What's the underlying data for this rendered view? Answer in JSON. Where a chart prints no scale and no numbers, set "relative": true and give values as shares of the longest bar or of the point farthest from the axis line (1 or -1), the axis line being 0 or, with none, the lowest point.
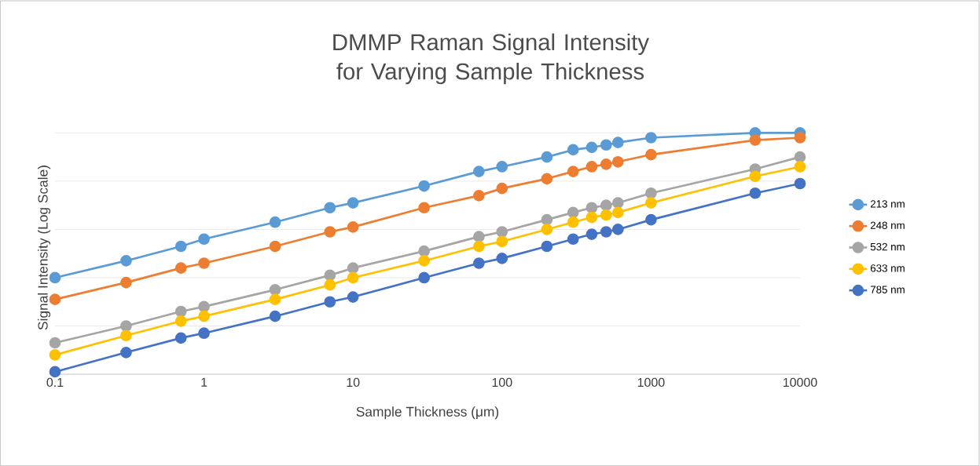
{
  "chart_data": {
    "type": "line",
    "title": "DMMP Raman Signal Intensity for Varying Sample Thickness",
    "xlabel": "Sample Thickness (μm)",
    "ylabel": "Signal Intensity (Log Scale)",
    "relative": true,
    "log": "x",
    "grid": "y",
    "legend": "right",
    "marker": "circle",
    "x": [
      0.1,
      0.3,
      0.7,
      1,
      3,
      7,
      10,
      30,
      70,
      100,
      200,
      300,
      400,
      500,
      600,
      1000,
      5000,
      10000
    ],
    "xlim": [
      0.1,
      10000
    ],
    "xticks": [
      0.1,
      1,
      10,
      100,
      1000,
      10000
    ],
    "series": [
      {
        "name": "213 nm",
        "color": "#5b9bd5",
        "values": [
          0.4,
          0.47,
          0.53,
          0.56,
          0.63,
          0.69,
          0.71,
          0.78,
          0.84,
          0.86,
          0.9,
          0.93,
          0.94,
          0.95,
          0.96,
          0.98,
          1,
          1
        ]
      },
      {
        "name": "248 nm",
        "color": "#ed7d31",
        "values": [
          0.31,
          0.38,
          0.44,
          0.46,
          0.53,
          0.59,
          0.61,
          0.69,
          0.74,
          0.77,
          0.81,
          0.84,
          0.86,
          0.87,
          0.88,
          0.91,
          0.97,
          0.98
        ]
      },
      {
        "name": "532 nm",
        "color": "#a5a5a5",
        "values": [
          0.13,
          0.2,
          0.26,
          0.28,
          0.35,
          0.41,
          0.44,
          0.51,
          0.57,
          0.59,
          0.64,
          0.67,
          0.69,
          0.7,
          0.71,
          0.75,
          0.85,
          0.9
        ]
      },
      {
        "name": "633 nm",
        "color": "#ffc000",
        "values": [
          0.08,
          0.16,
          0.22,
          0.24,
          0.31,
          0.37,
          0.4,
          0.47,
          0.53,
          0.55,
          0.6,
          0.63,
          0.65,
          0.66,
          0.67,
          0.71,
          0.82,
          0.86
        ]
      },
      {
        "name": "785 nm",
        "color": "#4472c4",
        "values": [
          0.01,
          0.09,
          0.15,
          0.17,
          0.24,
          0.3,
          0.32,
          0.4,
          0.46,
          0.48,
          0.53,
          0.56,
          0.58,
          0.59,
          0.6,
          0.64,
          0.75,
          0.79
        ]
      }
    ]
  }
}
